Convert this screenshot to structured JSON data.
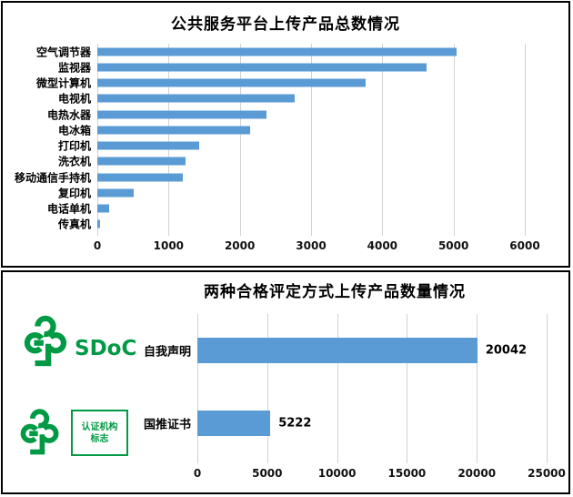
{
  "colors": {
    "bar_blue": "#5B9BD5",
    "logo_green": "#009A44",
    "gridline_gray": "#d2d2d2",
    "border_black": "#000000"
  },
  "panels": {
    "top": {
      "title": "公共服务平台上传产品总数情况"
    },
    "bottom": {
      "title": "两种合格评定方式上传产品数量情况",
      "logos": {
        "tree_icon": "china-green-product-tree-icon",
        "sdoc_text": "SDoC",
        "cert_box_line1": "认证机构",
        "cert_box_line2": "标志"
      }
    }
  },
  "chart_data": [
    {
      "type": "bar",
      "orientation": "horizontal",
      "title": "公共服务平台上传产品总数情况",
      "categories": [
        "空气调节器",
        "监视器",
        "微型计算机",
        "电视机",
        "电热水器",
        "电冰箱",
        "打印机",
        "洗衣机",
        "移动通信手持机",
        "复印机",
        "电话单机",
        "传真机"
      ],
      "values": [
        5040,
        4620,
        3770,
        2770,
        2370,
        2140,
        1430,
        1240,
        1200,
        510,
        170,
        40
      ],
      "xlabel": "",
      "ylabel": "",
      "xlim": [
        0,
        6000
      ],
      "xticks": [
        0,
        1000,
        2000,
        3000,
        4000,
        5000,
        6000
      ],
      "grid": true,
      "legend": false,
      "data_labels": false,
      "bar_color": "#5B9BD5"
    },
    {
      "type": "bar",
      "orientation": "horizontal",
      "title": "两种合格评定方式上传产品数量情况",
      "categories": [
        "自我声明",
        "国推证书"
      ],
      "values": [
        20042,
        5222
      ],
      "xlabel": "",
      "ylabel": "",
      "xlim": [
        0,
        25000
      ],
      "xticks": [
        0,
        5000,
        10000,
        15000,
        20000,
        25000
      ],
      "grid": true,
      "legend": false,
      "data_labels": true,
      "bar_color": "#5B9BD5"
    }
  ]
}
